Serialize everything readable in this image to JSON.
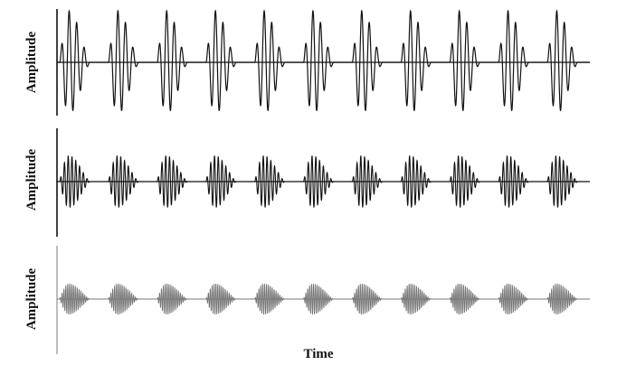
{
  "chart_data": [
    {
      "type": "line",
      "panel": "top",
      "ylabel": "Amplitude",
      "xlabel": "",
      "bursts": 11,
      "burst_period": 1.0,
      "burst_length": 0.62,
      "cycles_per_burst": 4,
      "peak_amplitude": 1.0,
      "line_color": "#111111"
    },
    {
      "type": "line",
      "panel": "middle",
      "ylabel": "Amplitude",
      "xlabel": "",
      "bursts": 11,
      "burst_period": 1.0,
      "burst_length": 0.62,
      "cycles_per_burst": 8,
      "peak_amplitude": 0.5,
      "line_color": "#111111"
    },
    {
      "type": "line",
      "panel": "bottom",
      "ylabel": "Amplitude",
      "xlabel": "Time",
      "bursts": 11,
      "burst_period": 1.0,
      "burst_length": 0.62,
      "cycles_per_burst": 16,
      "peak_amplitude": 0.3,
      "line_color": "#777777"
    }
  ]
}
